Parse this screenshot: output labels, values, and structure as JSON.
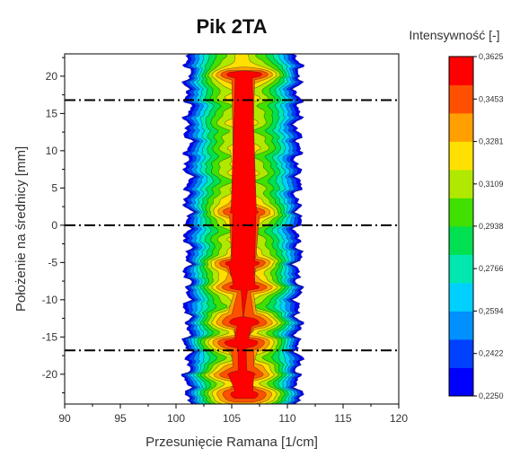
{
  "chart_data": {
    "type": "heatmap",
    "subtype": "contour",
    "title": "Pik 2TA",
    "xlabel": "Przesunięcie Ramana [1/cm]",
    "ylabel": "Położenie na średnicy [mm]",
    "xlim": [
      90,
      120
    ],
    "ylim": [
      -24,
      23
    ],
    "x_ticks": [
      90,
      95,
      100,
      105,
      110,
      115,
      120
    ],
    "y_ticks": [
      -20,
      -15,
      -10,
      -5,
      0,
      5,
      10,
      15,
      20
    ],
    "x_tick_labels": [
      "90",
      "95",
      "100",
      "105",
      "110",
      "115",
      "120"
    ],
    "y_tick_labels": [
      "-20",
      "-15",
      "-10",
      "-5",
      "0",
      "5",
      "10",
      "15",
      "20"
    ],
    "grid": false,
    "colorbar": {
      "title": "Intensywność [-]",
      "min": 0.225,
      "max": 0.3625,
      "tick_values": [
        0.3625,
        0.3453,
        0.3281,
        0.3109,
        0.2938,
        0.2766,
        0.2594,
        0.2422,
        0.225
      ],
      "tick_labels": [
        "0,3625",
        "0,3453",
        "0,3281",
        "0,3109",
        "0,2938",
        "0,2766",
        "0,2594",
        "0,2422",
        "0,2250"
      ],
      "colors": [
        "#0000ff",
        "#0040ff",
        "#0090ff",
        "#00d0ff",
        "#00e8b0",
        "#00e050",
        "#40e000",
        "#b0e800",
        "#ffe000",
        "#ffa000",
        "#ff5000",
        "#ff0000"
      ]
    },
    "peak_center": 106,
    "band_range_at_threshold": [
      100.5,
      110.5
    ],
    "high_intensity_positions": [
      20,
      2,
      -5,
      -8,
      -13,
      -16,
      -20,
      -23
    ],
    "reference_lines": [
      {
        "orientation": "horizontal",
        "y": 16.8,
        "style": "dash-dot"
      },
      {
        "orientation": "horizontal",
        "y": 0,
        "style": "dash-dot"
      },
      {
        "orientation": "horizontal",
        "y": -16.8,
        "style": "dash-dot"
      }
    ]
  }
}
